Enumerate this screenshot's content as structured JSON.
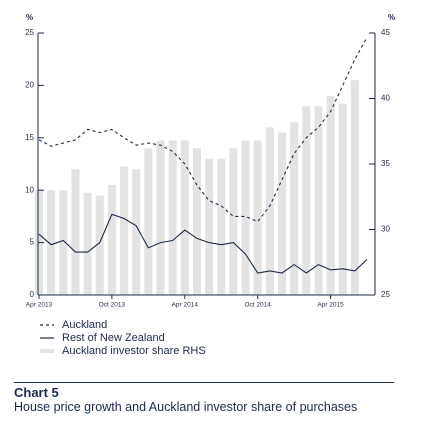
{
  "chart_data": {
    "type": "combo",
    "y_label": "%",
    "y2_label": "%",
    "categories": [
      "Apr 2013",
      null,
      null,
      null,
      null,
      null,
      "Oct 2013",
      null,
      null,
      null,
      null,
      null,
      "Apr 2014",
      null,
      null,
      null,
      null,
      null,
      "Oct 2014",
      null,
      null,
      null,
      null,
      null,
      "Apr 2015",
      null,
      null,
      null
    ],
    "series": [
      {
        "name": "Auckland investor share RHS",
        "type": "bar",
        "axis": "y2",
        "color": "#e3e3e3",
        "values": [
          33,
          33,
          33,
          34.6,
          32.8,
          32.6,
          33.4,
          34.8,
          34.6,
          36.2,
          36.8,
          36.8,
          36.8,
          36.2,
          35.4,
          35.4,
          36.2,
          36.8,
          36.8,
          37.8,
          37.4,
          38.2,
          39.4,
          39.4,
          40.2,
          39.6,
          41.4,
          null
        ]
      },
      {
        "name": "Auckland",
        "type": "line",
        "dash": true,
        "color": "#1b2a4e",
        "values": [
          14.8,
          14.2,
          14.5,
          14.8,
          15.8,
          15.5,
          15.8,
          15,
          14.3,
          14.5,
          14.3,
          13.7,
          12.5,
          10.5,
          9,
          8.5,
          7.5,
          7.5,
          7,
          8.5,
          11,
          13.5,
          15,
          16,
          17.5,
          20,
          22.5,
          24.6
        ]
      },
      {
        "name": "Rest of New Zealand",
        "type": "line",
        "dash": false,
        "color": "#1b2a4e",
        "values": [
          5.8,
          4.8,
          5.2,
          4.1,
          4.1,
          5,
          7.7,
          7.3,
          6.6,
          4.5,
          5,
          5.2,
          6.2,
          5.4,
          5,
          4.8,
          5,
          3.9,
          2.1,
          2.3,
          2.1,
          2.9,
          2.1,
          2.9,
          2.4,
          2.5,
          2.3,
          3.4
        ]
      }
    ],
    "legend_order": [
      1,
      2,
      0
    ],
    "ylim": [
      0,
      25
    ],
    "yticks": [
      0,
      5,
      10,
      15,
      20,
      25
    ],
    "y2lim": [
      25,
      45
    ],
    "y2ticks": [
      25,
      30,
      35,
      40,
      45
    ],
    "chart_label": "Chart 5",
    "caption": "House price growth and Auckland investor share of purchases"
  }
}
